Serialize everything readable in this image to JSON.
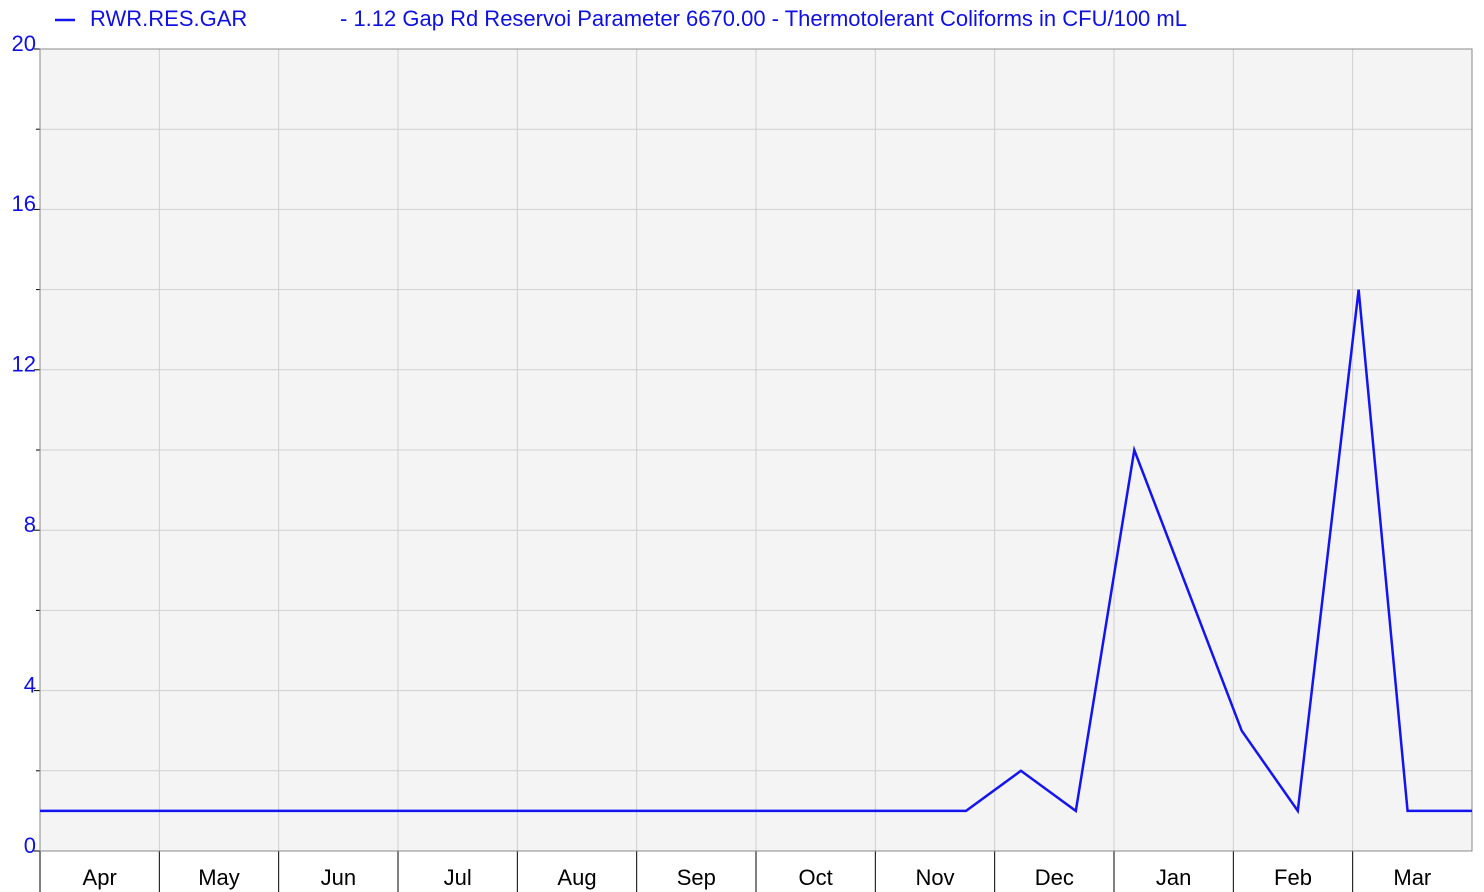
{
  "chart_data": {
    "type": "line",
    "title": "- 1.12 Gap Rd Reservoi Parameter 6670.00 - Thermotolerant Coliforms in CFU/100 mL",
    "categories": [
      "Apr",
      "May",
      "Jun",
      "Jul",
      "Aug",
      "Sep",
      "Oct",
      "Nov",
      "Dec",
      "Jan",
      "Feb",
      "Mar"
    ],
    "x": [
      0,
      7.76,
      8.22,
      8.68,
      9.17,
      10.07,
      10.54,
      11.05,
      11.46,
      12
    ],
    "xlim": [
      0,
      12
    ],
    "series": [
      {
        "name": "RWR.RES.GAR",
        "color": "#1414f0",
        "values": [
          1,
          1,
          2,
          1,
          10,
          3,
          1,
          14,
          1,
          1
        ]
      }
    ],
    "ylim": [
      0,
      20
    ],
    "yticks": [
      0,
      4,
      8,
      12,
      16,
      20
    ],
    "yminorticks": [
      2,
      6,
      10,
      14,
      18
    ],
    "grid": true
  }
}
